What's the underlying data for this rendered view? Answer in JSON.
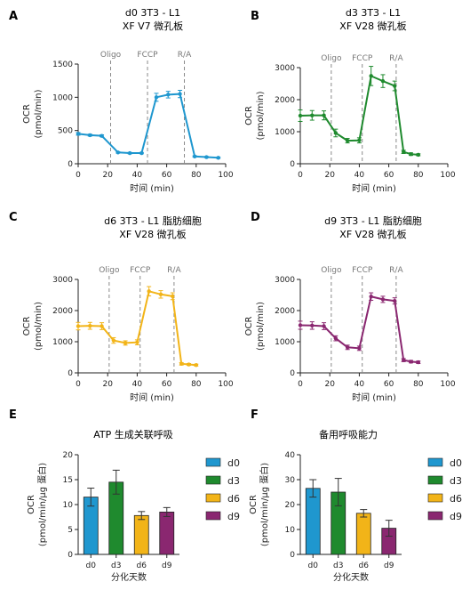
{
  "colors": {
    "d0": "#1f97cf",
    "d3": "#1f8a2e",
    "d6": "#f2b418",
    "d9": "#8a2770",
    "axis": "#222222",
    "phase_line": "#8a8a8a"
  },
  "chart_data": [
    {
      "panel": "A",
      "type": "line",
      "title": [
        "d0 3T3 - L1",
        "XF V7 微孔板"
      ],
      "xlabel": "时间 (min)",
      "ylabel": [
        "OCR",
        "(pmol/min)"
      ],
      "xlim": [
        0,
        100
      ],
      "ylim": [
        0,
        1500
      ],
      "xticks": [
        0,
        20,
        40,
        60,
        80,
        100
      ],
      "yticks": [
        0,
        500,
        1000,
        1500
      ],
      "phases": [
        {
          "label": "Oligo",
          "x": 22
        },
        {
          "label": "FCCP",
          "x": 47
        },
        {
          "label": "R/A",
          "x": 72
        }
      ],
      "series": [
        {
          "color_key": "d0",
          "x": [
            0,
            8,
            16,
            27,
            35,
            43,
            53,
            61,
            69,
            79,
            87,
            95
          ],
          "y": [
            450,
            430,
            420,
            170,
            160,
            160,
            1000,
            1040,
            1050,
            110,
            100,
            90
          ],
          "err": [
            20,
            15,
            15,
            10,
            10,
            10,
            60,
            50,
            55,
            10,
            10,
            10
          ]
        }
      ]
    },
    {
      "panel": "B",
      "type": "line",
      "title": [
        "d3 3T3 - L1",
        "XF V28 微孔板"
      ],
      "xlabel": "时间 (min)",
      "ylabel": [
        "OCR",
        "(pmol/min)"
      ],
      "xlim": [
        0,
        100
      ],
      "ylim": [
        0,
        3000
      ],
      "xticks": [
        0,
        20,
        40,
        60,
        80,
        100
      ],
      "yticks": [
        0,
        1000,
        2000,
        3000
      ],
      "phases": [
        {
          "label": "Oligo",
          "x": 21
        },
        {
          "label": "FCCP",
          "x": 42
        },
        {
          "label": "R/A",
          "x": 65
        }
      ],
      "series": [
        {
          "color_key": "d3",
          "x": [
            0,
            8,
            16,
            24,
            32,
            40,
            48,
            56,
            64,
            70,
            75,
            80
          ],
          "y": [
            1500,
            1510,
            1510,
            960,
            720,
            730,
            2740,
            2580,
            2430,
            370,
            300,
            280
          ],
          "err": [
            180,
            150,
            140,
            120,
            70,
            80,
            300,
            200,
            150,
            50,
            40,
            30
          ]
        }
      ]
    },
    {
      "panel": "C",
      "type": "line",
      "title": [
        "d6 3T3 - L1 脂肪细胞",
        "XF V28 微孔板"
      ],
      "xlabel": "时间 (min)",
      "ylabel": [
        "OCR",
        "(pmol/min)"
      ],
      "xlim": [
        0,
        100
      ],
      "ylim": [
        0,
        3000
      ],
      "xticks": [
        0,
        20,
        40,
        60,
        80,
        100
      ],
      "yticks": [
        0,
        1000,
        2000,
        3000
      ],
      "phases": [
        {
          "label": "Oligo",
          "x": 21
        },
        {
          "label": "FCCP",
          "x": 42
        },
        {
          "label": "R/A",
          "x": 65
        }
      ],
      "series": [
        {
          "color_key": "d6",
          "x": [
            0,
            8,
            16,
            24,
            32,
            40,
            48,
            56,
            64,
            70,
            75,
            80
          ],
          "y": [
            1500,
            1510,
            1500,
            1040,
            960,
            980,
            2620,
            2520,
            2460,
            290,
            270,
            250
          ],
          "err": [
            120,
            110,
            110,
            90,
            70,
            80,
            150,
            120,
            110,
            40,
            30,
            30
          ]
        }
      ]
    },
    {
      "panel": "D",
      "type": "line",
      "title": [
        "d9 3T3 - L1 脂肪细胞",
        "XF V28 微孔板"
      ],
      "xlabel": "时间 (min)",
      "ylabel": [
        "OCR",
        "(pmol/min)"
      ],
      "xlim": [
        0,
        100
      ],
      "ylim": [
        0,
        3000
      ],
      "xticks": [
        0,
        20,
        40,
        60,
        80,
        100
      ],
      "yticks": [
        0,
        1000,
        2000,
        3000
      ],
      "phases": [
        {
          "label": "Oligo",
          "x": 21
        },
        {
          "label": "FCCP",
          "x": 42
        },
        {
          "label": "R/A",
          "x": 65
        }
      ],
      "series": [
        {
          "color_key": "d9",
          "x": [
            0,
            8,
            16,
            24,
            32,
            40,
            48,
            56,
            64,
            70,
            75,
            80
          ],
          "y": [
            1530,
            1520,
            1500,
            1110,
            820,
            790,
            2450,
            2360,
            2310,
            410,
            360,
            340
          ],
          "err": [
            130,
            120,
            110,
            80,
            70,
            70,
            120,
            100,
            100,
            50,
            40,
            40
          ]
        }
      ]
    },
    {
      "panel": "E",
      "type": "bar",
      "title": [
        "ATP 生成关联呼吸"
      ],
      "xlabel": "分化天数",
      "ylabel": [
        "OCR",
        "(pmol/min/μg 蛋白)"
      ],
      "categories": [
        "d0",
        "d3",
        "d6",
        "d9"
      ],
      "values": [
        11.5,
        14.5,
        7.8,
        8.5
      ],
      "err": [
        1.8,
        2.4,
        0.8,
        0.9
      ],
      "ylim": [
        0,
        20
      ],
      "yticks": [
        0,
        5,
        10,
        15,
        20
      ]
    },
    {
      "panel": "F",
      "type": "bar",
      "title": [
        "备用呼吸能力"
      ],
      "xlabel": "分化天数",
      "ylabel": [
        "OCR",
        "(pmol/min/μg 蛋白)"
      ],
      "categories": [
        "d0",
        "d3",
        "d6",
        "d9"
      ],
      "values": [
        26.5,
        25,
        16.5,
        10.5
      ],
      "err": [
        3.5,
        5.5,
        1.5,
        3.2
      ],
      "ylim": [
        0,
        40
      ],
      "yticks": [
        0,
        10,
        20,
        30,
        40
      ]
    }
  ],
  "legend": [
    "d0",
    "d3",
    "d6",
    "d9"
  ]
}
